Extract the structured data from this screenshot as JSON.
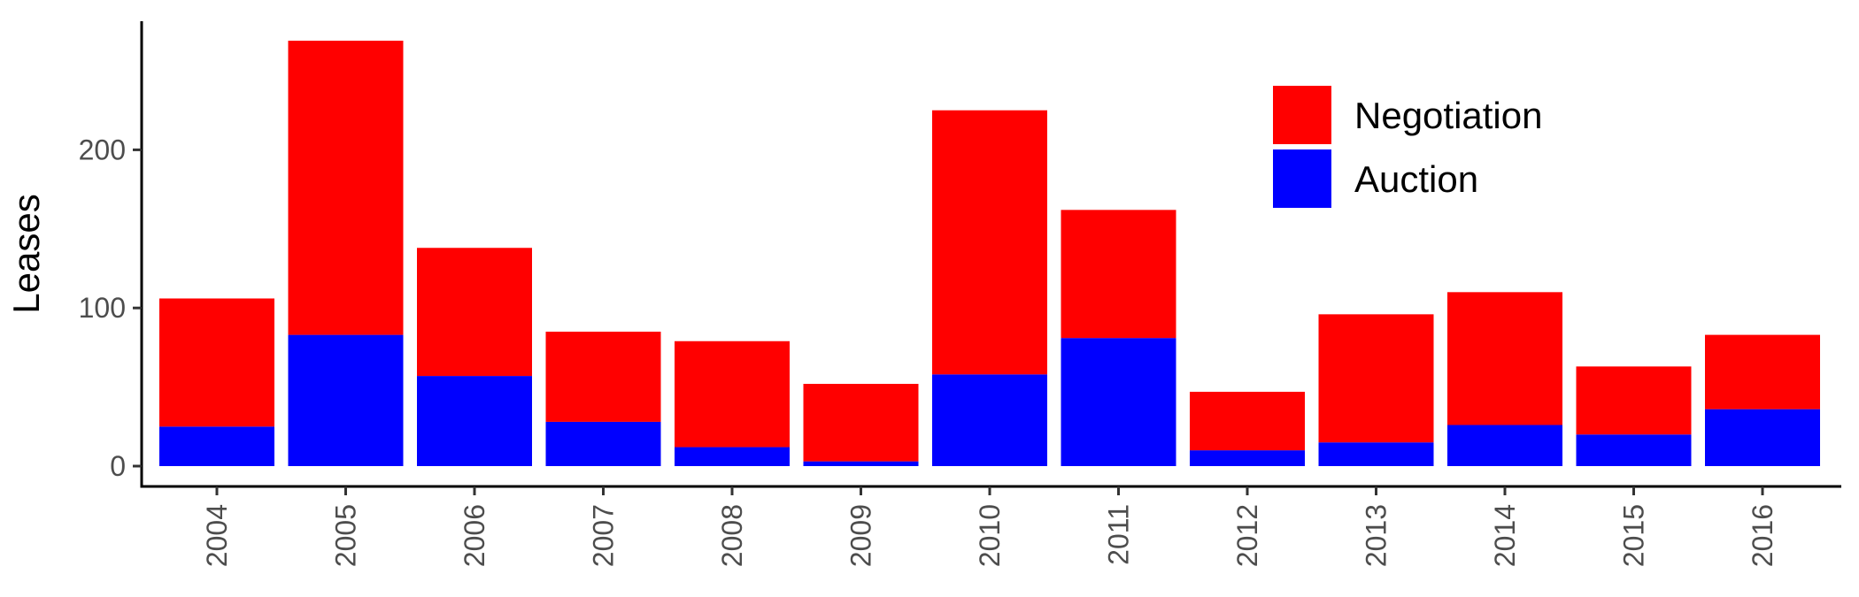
{
  "chart_data": {
    "type": "bar",
    "stacked": true,
    "categories": [
      "2004",
      "2005",
      "2006",
      "2007",
      "2008",
      "2009",
      "2010",
      "2011",
      "2012",
      "2013",
      "2014",
      "2015",
      "2016"
    ],
    "series": [
      {
        "name": "Auction",
        "color": "#0000ff",
        "values": [
          25,
          83,
          57,
          28,
          12,
          3,
          58,
          81,
          10,
          15,
          26,
          20,
          36
        ]
      },
      {
        "name": "Negotiation",
        "color": "#ff0000",
        "values": [
          81,
          186,
          81,
          57,
          67,
          49,
          167,
          81,
          37,
          81,
          84,
          43,
          47
        ]
      }
    ],
    "title": "",
    "xlabel": "",
    "ylabel": "Leases",
    "ylim": [
      0,
      282
    ],
    "yticks": [
      0,
      100,
      200
    ],
    "xtick_rotation": -90,
    "legend": {
      "placement": "top-right",
      "order": [
        "Negotiation",
        "Auction"
      ]
    },
    "grid": false
  }
}
